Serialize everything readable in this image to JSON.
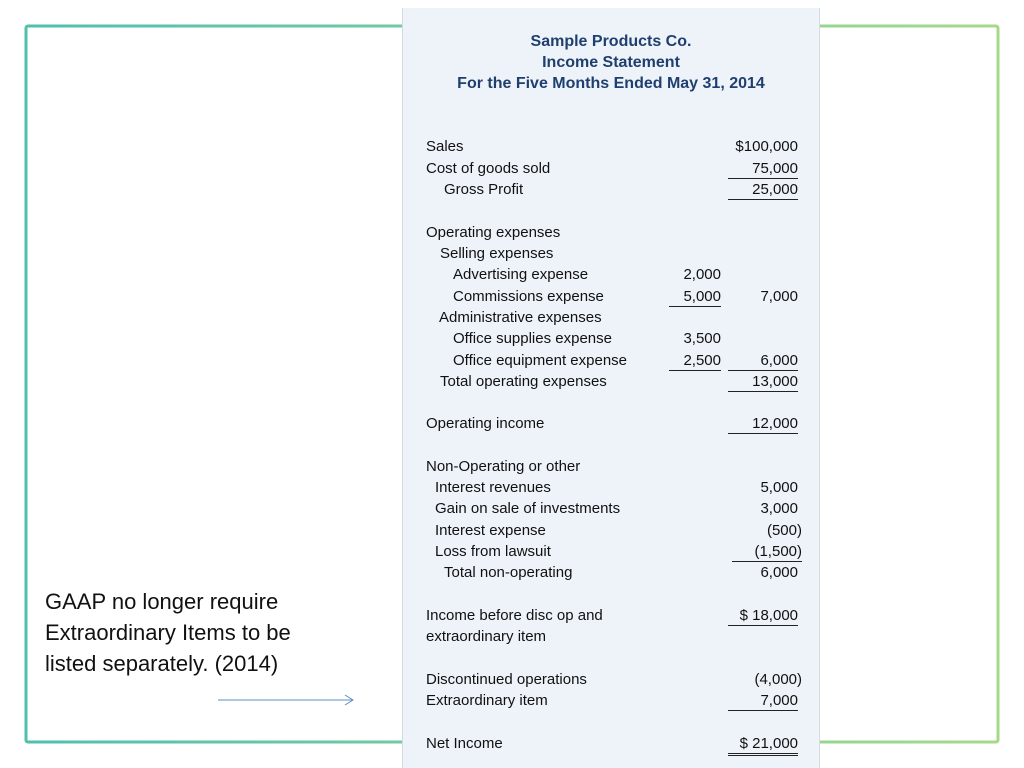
{
  "note": [
    "GAAP no longer require",
    "Extraordinary Items to be",
    "listed separately.  (2014)"
  ],
  "statement": {
    "title": [
      "Sample Products Co.",
      "Income Statement",
      "For the Five Months Ended May 31, 2014"
    ],
    "rows": [
      {
        "label": "Sales",
        "col2": "$100,000"
      },
      {
        "label": "Cost of goods sold",
        "col2": "75,000"
      },
      {
        "label": "Gross Profit",
        "col2": "25,000"
      },
      {
        "label": "Operating expenses"
      },
      {
        "label": "Selling expenses"
      },
      {
        "label": "Advertising expense",
        "col1": "2,000"
      },
      {
        "label": "Commissions expense",
        "col1": "5,000",
        "col2": "7,000"
      },
      {
        "label": "Administrative expenses"
      },
      {
        "label": "Office supplies expense",
        "col1": "3,500"
      },
      {
        "label": "Office equipment expense",
        "col1": "2,500",
        "col2": "6,000"
      },
      {
        "label": "Total operating expenses",
        "col2": "13,000"
      },
      {
        "label": "Operating income",
        "col2": "12,000"
      },
      {
        "label": "Non-Operating or other"
      },
      {
        "label": "Interest revenues",
        "col2": "5,000"
      },
      {
        "label": "Gain on sale of investments",
        "col2": "3,000"
      },
      {
        "label": "Interest expense",
        "col2": "(500)"
      },
      {
        "label": "Loss from lawsuit",
        "col2": "(1,500)"
      },
      {
        "label": "Total non-operating",
        "col2": "6,000"
      },
      {
        "label": [
          "Income before disc op and",
          "extraordinary item"
        ],
        "col2": "$ 18,000"
      },
      {
        "label": "Discontinued operations",
        "col2": "(4,000)"
      },
      {
        "label": "Extraordinary item",
        "col2": "7,000"
      },
      {
        "label": "Net Income",
        "col2": "$ 21,000"
      }
    ]
  }
}
